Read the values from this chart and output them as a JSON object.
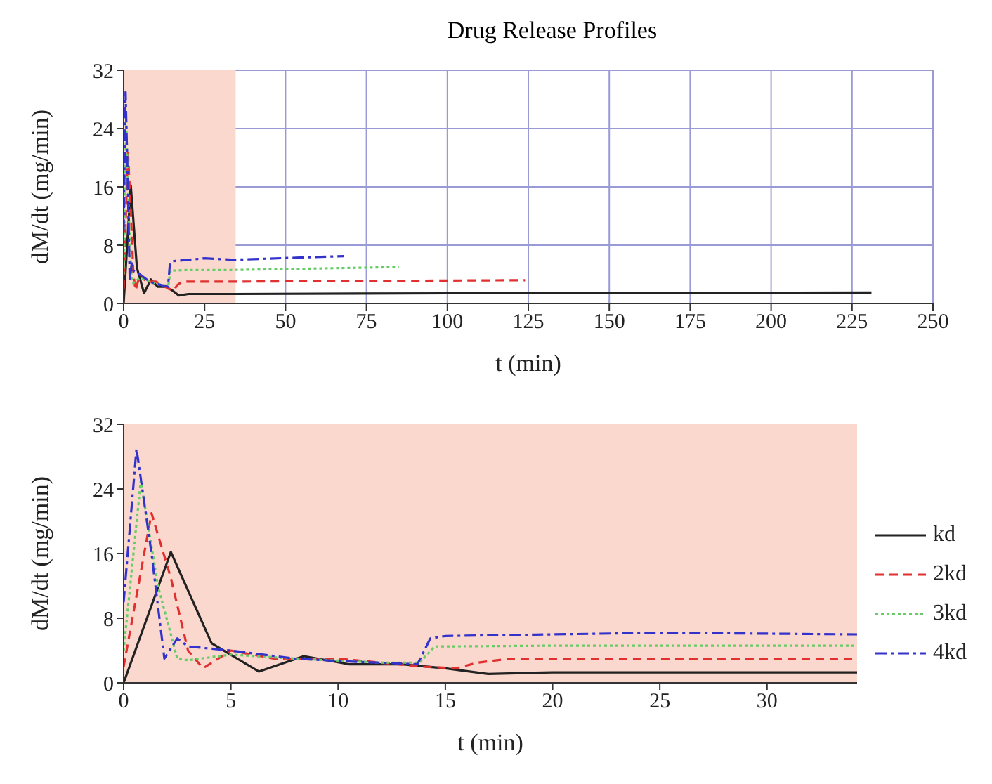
{
  "chart_data": [
    {
      "type": "line",
      "title": "Drug Release Profiles",
      "xlabel": "t (min)",
      "ylabel": "dM/dt (mg/min)",
      "xlim": [
        0,
        250
      ],
      "xticks": [
        0,
        25,
        50,
        75,
        100,
        125,
        150,
        175,
        200,
        225,
        250
      ],
      "ylim": [
        0,
        32
      ],
      "yticks": [
        0,
        8,
        16,
        24,
        32
      ],
      "grid": true,
      "legend": false,
      "marker": "none",
      "bands": [
        {
          "axis": "x",
          "from": 0,
          "to": 34.6,
          "color": "#fbd8ce"
        }
      ],
      "series": [
        {
          "color": "#222222",
          "line_style": "solid",
          "x": [
            0,
            2.2,
            4.1,
            6.3,
            8.4,
            10.5,
            13,
            15,
            17,
            20,
            34,
            100,
            231
          ],
          "values": [
            0,
            16.2,
            4.9,
            1.4,
            3.3,
            2.3,
            2.3,
            1.8,
            1.1,
            1.3,
            1.3,
            1.4,
            1.5
          ]
        },
        {
          "color": "#e03030",
          "line_style": "dashed",
          "x": [
            0,
            1.3,
            2.2,
            3,
            3.7,
            5,
            7,
            10,
            12,
            14,
            15.5,
            16.5,
            18,
            34,
            124
          ],
          "values": [
            2,
            21,
            13,
            4,
            1.8,
            4,
            3,
            3,
            2.5,
            2,
            1.8,
            2.5,
            3,
            3,
            3.2
          ]
        },
        {
          "color": "#66cc66",
          "line_style": "dotted",
          "x": [
            0,
            0.8,
            1.6,
            2.5,
            3,
            5,
            8,
            12,
            13.8,
            14.5,
            20,
            34,
            85
          ],
          "values": [
            4,
            25,
            12,
            3,
            2.8,
            3.5,
            3,
            2.5,
            2.5,
            4.5,
            4.6,
            4.6,
            5
          ]
        },
        {
          "color": "#3333cc",
          "line_style": "dashdot",
          "x": [
            0,
            0.6,
            1.3,
            1.9,
            2.5,
            3,
            5,
            8,
            10,
            13.7,
            14.3,
            15,
            20,
            25,
            34,
            68
          ],
          "values": [
            10,
            29,
            16,
            3,
            5.5,
            4.5,
            4,
            3,
            2.7,
            2.3,
            5.5,
            5.8,
            6,
            6.2,
            6,
            6.5
          ]
        }
      ]
    },
    {
      "type": "line",
      "xlabel": "t (min)",
      "ylabel": "dM/dt (mg/min)",
      "xlim": [
        0,
        34.2
      ],
      "xticks": [
        0,
        5,
        10,
        15,
        20,
        25,
        30
      ],
      "ylim": [
        0,
        32
      ],
      "yticks": [
        0,
        8,
        16,
        24,
        32
      ],
      "legend": "right",
      "marker": "none",
      "bands": [
        {
          "axis": "x",
          "from": 0,
          "to": 34.2,
          "color": "#fbd8ce"
        }
      ],
      "series": [
        {
          "name": "kd",
          "color": "#222222",
          "line_style": "solid",
          "x": [
            0,
            2.2,
            4.1,
            6.3,
            8.4,
            10.5,
            13,
            15,
            17,
            20,
            34.2
          ],
          "values": [
            0,
            16.2,
            4.9,
            1.4,
            3.3,
            2.3,
            2.3,
            1.8,
            1.1,
            1.3,
            1.3
          ]
        },
        {
          "name": "2kd",
          "color": "#e03030",
          "line_style": "dashed",
          "x": [
            0,
            1.3,
            2.2,
            3,
            3.7,
            5,
            7,
            10,
            12,
            14,
            15.5,
            16.5,
            18,
            34.2
          ],
          "values": [
            2,
            21,
            13,
            4,
            1.8,
            4,
            3,
            3,
            2.5,
            2,
            1.8,
            2.5,
            3,
            3
          ]
        },
        {
          "name": "3kd",
          "color": "#66cc66",
          "line_style": "dotted",
          "x": [
            0,
            0.8,
            1.6,
            2.5,
            3,
            5,
            8,
            12,
            13.8,
            14.5,
            20,
            34.2
          ],
          "values": [
            4,
            25,
            12,
            3,
            2.8,
            3.5,
            3,
            2.5,
            2.5,
            4.5,
            4.6,
            4.6
          ]
        },
        {
          "name": "4kd",
          "color": "#3333cc",
          "line_style": "dashdot",
          "x": [
            0,
            0.6,
            1.3,
            1.9,
            2.5,
            3,
            5,
            8,
            10,
            13.7,
            14.3,
            15,
            20,
            25,
            34.2
          ],
          "values": [
            10,
            29,
            16,
            3,
            5.5,
            4.5,
            4,
            3,
            2.7,
            2.3,
            5.5,
            5.8,
            6,
            6.2,
            6
          ]
        }
      ]
    }
  ]
}
